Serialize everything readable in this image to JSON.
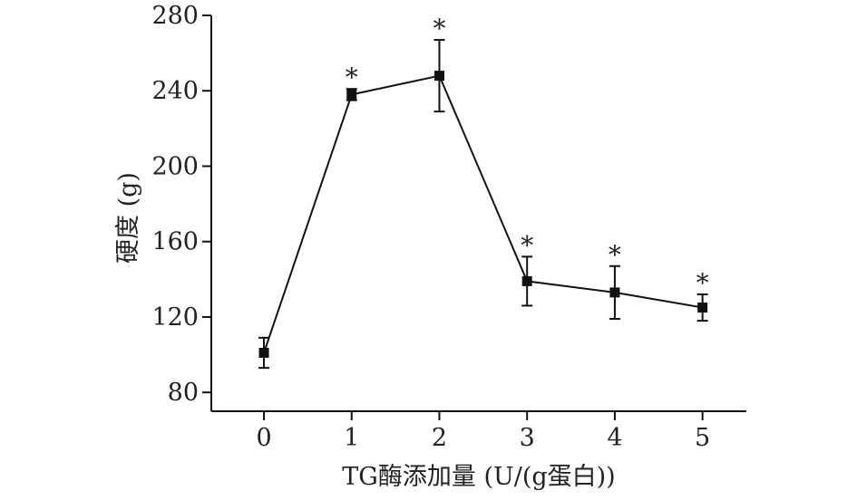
{
  "chart_data": {
    "type": "line",
    "xlabel": "TG酶添加量 (U/(g蛋白))",
    "ylabel": "硬度 (g)",
    "x": [
      0,
      1,
      2,
      3,
      4,
      5
    ],
    "x_tick_labels": [
      "0",
      "1",
      "2",
      "3",
      "4",
      "5"
    ],
    "y_tick_labels": [
      "80",
      "120",
      "160",
      "200",
      "240",
      "280"
    ],
    "xlim": [
      -0.6,
      5.5
    ],
    "ylim": [
      70,
      280
    ],
    "series": [
      {
        "values": [
          101,
          238,
          248,
          139,
          133,
          125
        ],
        "error": [
          8,
          3,
          19,
          13,
          14,
          7
        ],
        "marker": "square"
      }
    ],
    "significance_marks": [
      "",
      "*",
      "*",
      "*",
      "*",
      "*"
    ],
    "grid": false,
    "legend": false,
    "line_color": "#111111"
  }
}
